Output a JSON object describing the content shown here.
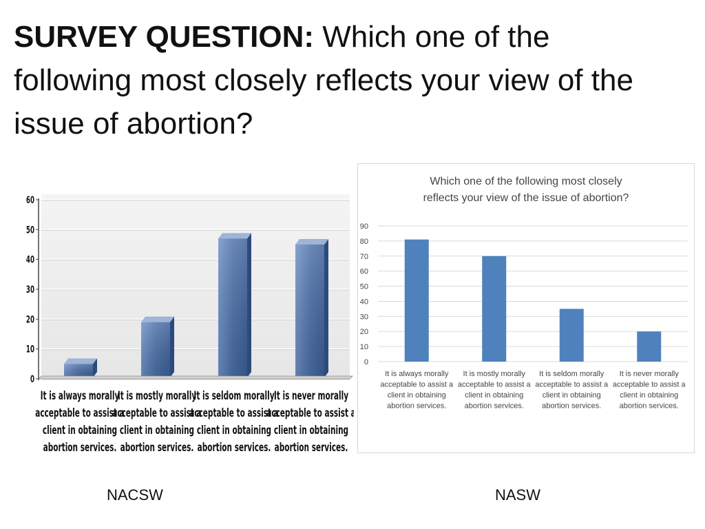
{
  "slide": {
    "title_lead": "SURVEY QUESTION:",
    "title_rest": " Which one of the following most closely reflects your view of the issue of abortion?"
  },
  "captions": {
    "left": "NACSW",
    "right": "NASW"
  },
  "colors": {
    "left_bar_top": "#9fb4d6",
    "left_bar_front": "#4a6fa8",
    "left_bar_side": "#2c4a7e",
    "right_bar": "#4f81bd",
    "grid": "#d9d9d9",
    "frame": "#d6d6d6"
  },
  "chart_data": [
    {
      "type": "bar",
      "name": "NACSW",
      "title": "",
      "categories": [
        "It is always morally acceptable to assist a client in obtaining abortion services.",
        "It is mostly morally acceptable to assist a client in obtaining abortion services.",
        "It is seldom morally acceptable to assist a client in obtaining abortion services.",
        "It is never morally acceptable to assist a client in obtaining abortion services."
      ],
      "category_lines": [
        [
          "It is always morally",
          "acceptable to assist a",
          "client in obtaining",
          "abortion services."
        ],
        [
          "It is mostly morally",
          "acceptable to assist a",
          "client in obtaining",
          "abortion services."
        ],
        [
          "It is seldom morally",
          "acceptable to assist a",
          "client in obtaining",
          "abortion services."
        ],
        [
          "It is never morally",
          "acceptable to assist a",
          "client in obtaining",
          "abortion services."
        ]
      ],
      "values": [
        5,
        19,
        47,
        45
      ],
      "ylim": [
        0,
        60
      ],
      "yticks": [
        "0",
        "10",
        "20",
        "30",
        "40",
        "50",
        "60"
      ],
      "grid": true,
      "style": "3d"
    },
    {
      "type": "bar",
      "name": "NASW",
      "title_lines": [
        "Which one of the following most closely",
        "reflects your view of the issue of abortion?"
      ],
      "categories": [
        "It is always morally acceptable to assist a client in obtaining abortion services.",
        "It is mostly morally acceptable to assist a client in obtaining abortion services.",
        "It is seldom morally acceptable to assist a client in obtaining abortion services.",
        "It is never morally acceptable to assist a client in obtaining abortion services."
      ],
      "category_lines": [
        [
          "It is always morally",
          "acceptable to assist a",
          "client in obtaining",
          "abortion services."
        ],
        [
          "It is mostly morally",
          "acceptable to assist a",
          "client in obtaining",
          "abortion services."
        ],
        [
          "It is seldom morally",
          "acceptable to assist a",
          "client in obtaining",
          "abortion services."
        ],
        [
          "It is never morally",
          "acceptable to assist a",
          "client in obtaining",
          "abortion services."
        ]
      ],
      "values": [
        81,
        70,
        35,
        20
      ],
      "ylim": [
        0,
        90
      ],
      "yticks": [
        "0",
        "10",
        "20",
        "30",
        "40",
        "50",
        "60",
        "70",
        "80",
        "90"
      ],
      "grid": true,
      "style": "flat"
    }
  ]
}
